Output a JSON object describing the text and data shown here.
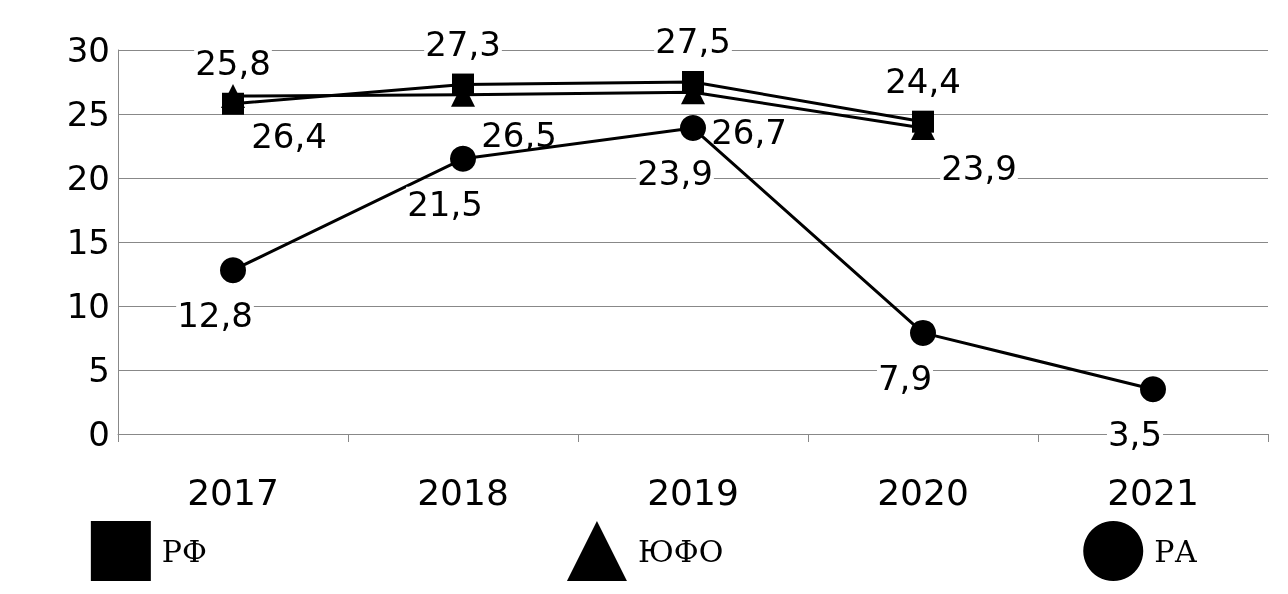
{
  "chart_data": {
    "type": "line",
    "categories": [
      "2017",
      "2018",
      "2019",
      "2020",
      "2021"
    ],
    "series": [
      {
        "name": "РФ",
        "color": "#000000",
        "marker": "square",
        "values": [
          25.8,
          27.3,
          27.5,
          24.4,
          null
        ],
        "value_labels": [
          "25,8",
          "27,3",
          "27,5",
          "24,4",
          null
        ]
      },
      {
        "name": "ЮФО",
        "color": "#000000",
        "marker": "triangle",
        "values": [
          26.4,
          26.5,
          26.7,
          23.9,
          null
        ],
        "value_labels": [
          "26,4",
          "26,5",
          "26,7",
          "23,9",
          null
        ]
      },
      {
        "name": "РА",
        "color": "#000000",
        "marker": "circle",
        "values": [
          12.8,
          21.5,
          23.9,
          7.9,
          3.5
        ],
        "value_labels": [
          "12,8",
          "21,5",
          "23,9",
          "7,9",
          "3,5"
        ]
      }
    ],
    "ylim": [
      0,
      30
    ],
    "yticks": [
      0,
      5,
      10,
      15,
      20,
      25,
      30
    ],
    "grid": "y",
    "legend": "bottom"
  }
}
